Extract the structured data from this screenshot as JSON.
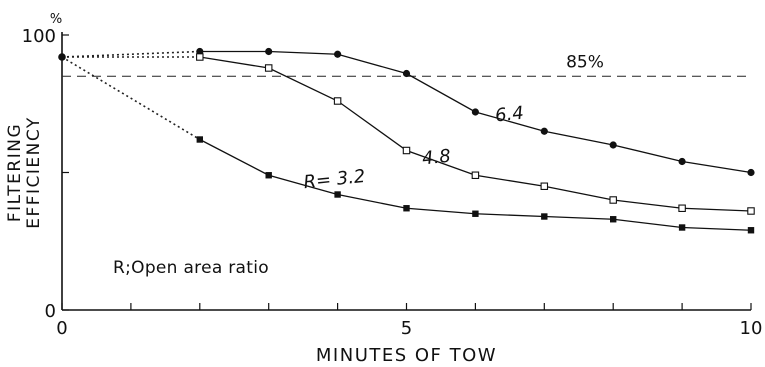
{
  "chart_data": {
    "type": "line",
    "xlabel": "MINUTES OF TOW",
    "ylabel_lines": [
      "FILTERING",
      "EFFICIENCY"
    ],
    "y_unit": "%",
    "xlim": [
      0,
      10
    ],
    "ylim": [
      0,
      100
    ],
    "x_ticks": [
      {
        "value": 0,
        "label": "0"
      },
      {
        "value": 5,
        "label": "5"
      },
      {
        "value": 10,
        "label": "10"
      }
    ],
    "y_ticks": [
      {
        "value": 0,
        "label": "0"
      },
      {
        "value": 100,
        "label": "100"
      }
    ],
    "grid": false,
    "reference_line": {
      "y": 85,
      "label": "85%",
      "style": "dashed"
    },
    "note": "R;Open area ratio",
    "start_point": {
      "x": 0,
      "y": 92
    },
    "series": [
      {
        "name": "6.4",
        "marker": "filled-circle",
        "points": [
          [
            2,
            94
          ],
          [
            3,
            94
          ],
          [
            4,
            93
          ],
          [
            5,
            86
          ],
          [
            6,
            72
          ],
          [
            7,
            65
          ],
          [
            8,
            60
          ],
          [
            9,
            54
          ],
          [
            10,
            50
          ]
        ]
      },
      {
        "name": "4.8",
        "marker": "open-square",
        "points": [
          [
            2,
            92
          ],
          [
            3,
            88
          ],
          [
            4,
            76
          ],
          [
            5,
            58
          ],
          [
            6,
            49
          ],
          [
            7,
            45
          ],
          [
            8,
            40
          ],
          [
            9,
            37
          ],
          [
            10,
            36
          ]
        ]
      },
      {
        "name": "R= 3.2",
        "marker": "filled-square",
        "points": [
          [
            2,
            62
          ],
          [
            3,
            49
          ],
          [
            4,
            42
          ],
          [
            5,
            37
          ],
          [
            6,
            35
          ],
          [
            7,
            34
          ],
          [
            8,
            33
          ],
          [
            9,
            30
          ],
          [
            10,
            29
          ]
        ]
      }
    ]
  }
}
